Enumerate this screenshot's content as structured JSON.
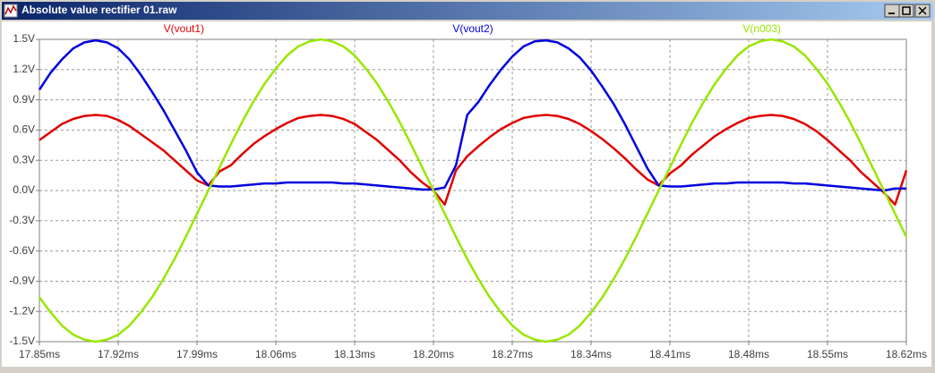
{
  "window": {
    "title": "Absolute value rectifier 01.raw"
  },
  "chart_data": {
    "type": "line",
    "x": [
      17.85,
      17.86,
      17.87,
      17.88,
      17.89,
      17.9,
      17.91,
      17.92,
      17.93,
      17.94,
      17.95,
      17.96,
      17.97,
      17.98,
      17.99,
      18.0,
      18.01,
      18.02,
      18.03,
      18.04,
      18.05,
      18.06,
      18.07,
      18.08,
      18.09,
      18.1,
      18.11,
      18.12,
      18.13,
      18.14,
      18.15,
      18.16,
      18.17,
      18.18,
      18.19,
      18.2,
      18.21,
      18.22,
      18.23,
      18.24,
      18.25,
      18.26,
      18.27,
      18.28,
      18.29,
      18.3,
      18.31,
      18.32,
      18.33,
      18.34,
      18.35,
      18.36,
      18.37,
      18.38,
      18.39,
      18.4,
      18.41,
      18.42,
      18.43,
      18.44,
      18.45,
      18.46,
      18.47,
      18.48,
      18.49,
      18.5,
      18.51,
      18.52,
      18.53,
      18.54,
      18.55,
      18.56,
      18.57,
      18.58,
      18.59,
      18.6,
      18.61,
      18.62
    ],
    "series": [
      {
        "name": "V(vout1)",
        "color": "#e00000",
        "values": [
          0.5,
          0.58,
          0.66,
          0.71,
          0.74,
          0.75,
          0.74,
          0.7,
          0.64,
          0.56,
          0.48,
          0.4,
          0.3,
          0.2,
          0.1,
          0.05,
          0.19,
          0.25,
          0.36,
          0.46,
          0.54,
          0.61,
          0.67,
          0.72,
          0.74,
          0.75,
          0.74,
          0.71,
          0.66,
          0.58,
          0.5,
          0.4,
          0.3,
          0.18,
          0.08,
          0.0,
          -0.14,
          0.2,
          0.34,
          0.44,
          0.53,
          0.61,
          0.67,
          0.72,
          0.74,
          0.75,
          0.74,
          0.71,
          0.66,
          0.59,
          0.51,
          0.42,
          0.32,
          0.21,
          0.11,
          0.05,
          0.17,
          0.25,
          0.36,
          0.45,
          0.54,
          0.61,
          0.67,
          0.72,
          0.74,
          0.75,
          0.74,
          0.71,
          0.66,
          0.59,
          0.5,
          0.4,
          0.3,
          0.18,
          0.08,
          -0.02,
          -0.14,
          0.2
        ]
      },
      {
        "name": "V(vout2)",
        "color": "#0000e0",
        "values": [
          1.0,
          1.17,
          1.3,
          1.41,
          1.47,
          1.49,
          1.47,
          1.41,
          1.3,
          1.15,
          0.98,
          0.8,
          0.6,
          0.4,
          0.18,
          0.05,
          0.04,
          0.04,
          0.05,
          0.06,
          0.07,
          0.07,
          0.08,
          0.08,
          0.08,
          0.08,
          0.08,
          0.07,
          0.07,
          0.06,
          0.05,
          0.04,
          0.03,
          0.02,
          0.01,
          0.01,
          0.03,
          0.25,
          0.75,
          0.88,
          1.05,
          1.2,
          1.33,
          1.43,
          1.48,
          1.49,
          1.47,
          1.41,
          1.32,
          1.19,
          1.03,
          0.86,
          0.66,
          0.44,
          0.22,
          0.05,
          0.04,
          0.04,
          0.05,
          0.06,
          0.07,
          0.07,
          0.08,
          0.08,
          0.08,
          0.08,
          0.08,
          0.07,
          0.07,
          0.06,
          0.05,
          0.04,
          0.03,
          0.02,
          0.01,
          0.0,
          0.02,
          0.02
        ]
      },
      {
        "name": "V(n003)",
        "color": "#99e600",
        "values": [
          -1.06,
          -1.21,
          -1.34,
          -1.43,
          -1.48,
          -1.5,
          -1.48,
          -1.43,
          -1.34,
          -1.21,
          -1.06,
          -0.88,
          -0.68,
          -0.46,
          -0.23,
          0.0,
          0.23,
          0.46,
          0.68,
          0.88,
          1.06,
          1.21,
          1.34,
          1.43,
          1.48,
          1.5,
          1.48,
          1.43,
          1.34,
          1.21,
          1.06,
          0.88,
          0.68,
          0.46,
          0.23,
          0.0,
          -0.23,
          -0.46,
          -0.68,
          -0.88,
          -1.06,
          -1.21,
          -1.34,
          -1.43,
          -1.48,
          -1.5,
          -1.48,
          -1.43,
          -1.34,
          -1.21,
          -1.06,
          -0.88,
          -0.68,
          -0.46,
          -0.23,
          0.0,
          0.23,
          0.46,
          0.68,
          0.88,
          1.06,
          1.21,
          1.34,
          1.43,
          1.48,
          1.5,
          1.48,
          1.43,
          1.34,
          1.21,
          1.06,
          0.88,
          0.68,
          0.46,
          0.23,
          0.0,
          -0.23,
          -0.46
        ]
      }
    ],
    "xlim": [
      17.85,
      18.62
    ],
    "ylim": [
      -1.5,
      1.5
    ],
    "xticks": [
      {
        "value": 17.85,
        "label": "17.85ms"
      },
      {
        "value": 17.92,
        "label": "17.92ms"
      },
      {
        "value": 17.99,
        "label": "17.99ms"
      },
      {
        "value": 18.06,
        "label": "18.06ms"
      },
      {
        "value": 18.13,
        "label": "18.13ms"
      },
      {
        "value": 18.2,
        "label": "18.20ms"
      },
      {
        "value": 18.27,
        "label": "18.27ms"
      },
      {
        "value": 18.34,
        "label": "18.34ms"
      },
      {
        "value": 18.41,
        "label": "18.41ms"
      },
      {
        "value": 18.48,
        "label": "18.48ms"
      },
      {
        "value": 18.55,
        "label": "18.55ms"
      },
      {
        "value": 18.62,
        "label": "18.62ms"
      }
    ],
    "yticks": [
      {
        "value": 1.5,
        "label": "1.5V"
      },
      {
        "value": 1.2,
        "label": "1.2V"
      },
      {
        "value": 0.9,
        "label": "0.9V"
      },
      {
        "value": 0.6,
        "label": "0.6V"
      },
      {
        "value": 0.3,
        "label": "0.3V"
      },
      {
        "value": 0,
        "label": "0.0V"
      },
      {
        "value": -0.3,
        "label": "-0.3V"
      },
      {
        "value": -0.6,
        "label": "-0.6V"
      },
      {
        "value": -0.9,
        "label": "-0.9V"
      },
      {
        "value": -1.2,
        "label": "-1.2V"
      },
      {
        "value": -1.5,
        "label": "-1.5V"
      }
    ],
    "grid": true
  }
}
